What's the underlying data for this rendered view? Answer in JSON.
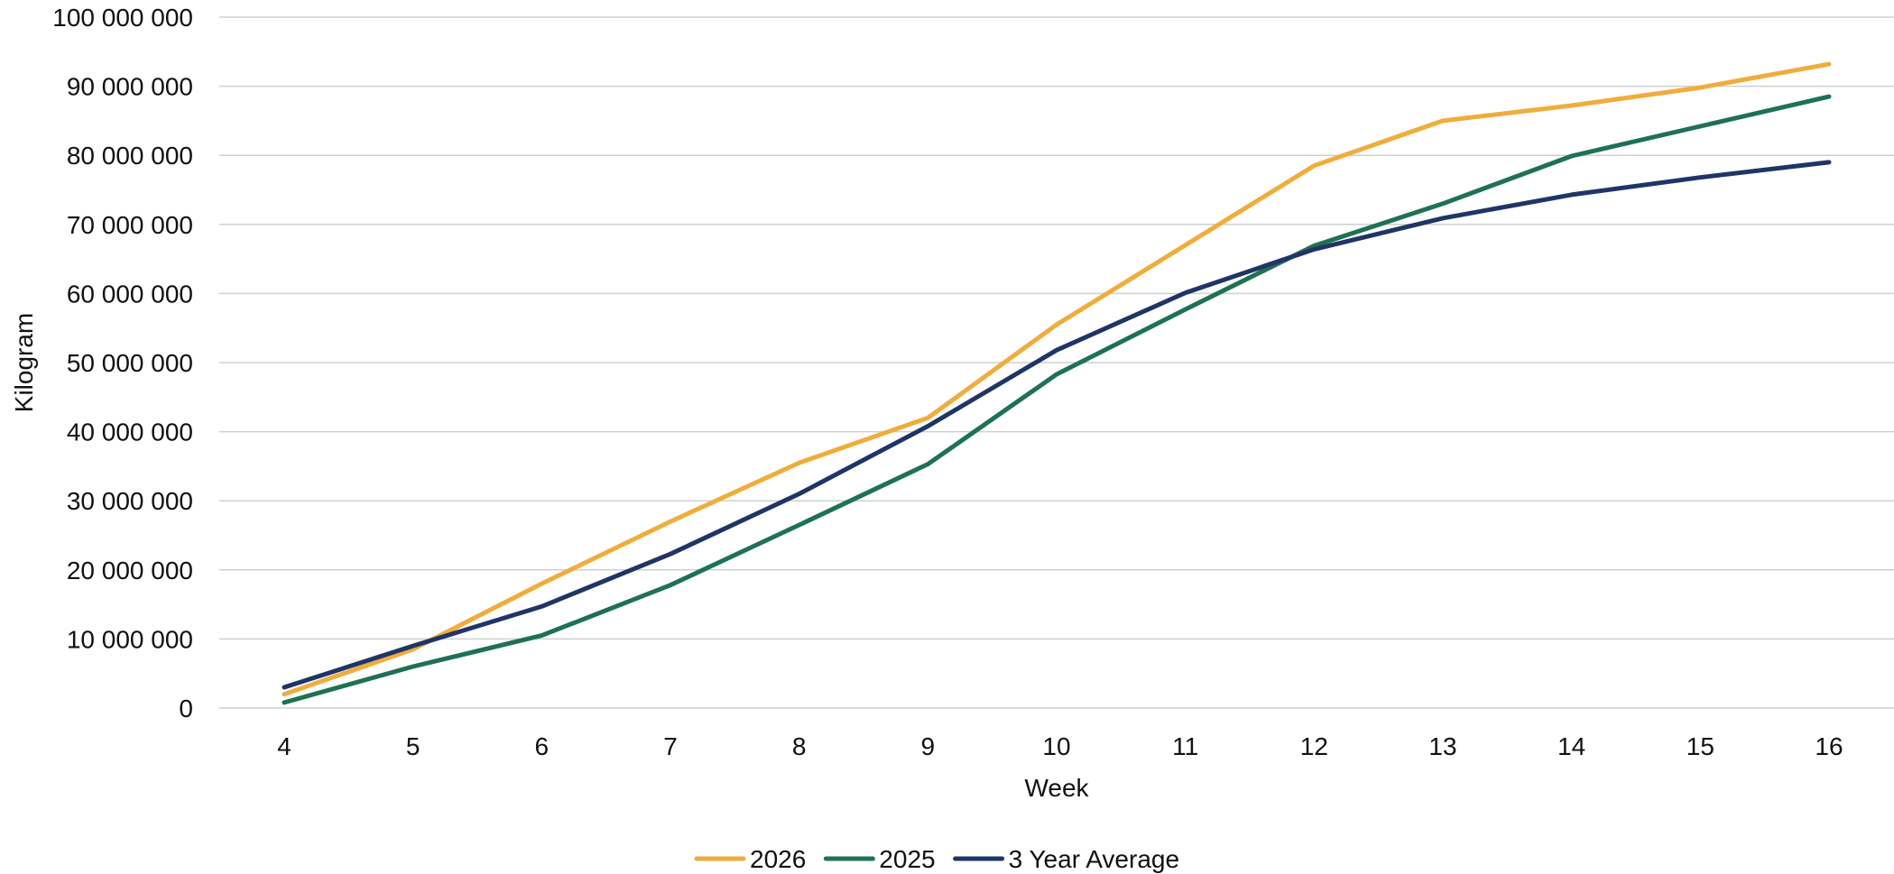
{
  "chart_data": {
    "type": "line",
    "title": "",
    "xlabel": "Week",
    "ylabel": "Kilogram",
    "x": [
      4,
      5,
      6,
      7,
      8,
      9,
      10,
      11,
      12,
      13,
      14,
      15,
      16
    ],
    "x_tick_labels": [
      "4",
      "5",
      "6",
      "7",
      "8",
      "9",
      "10",
      "11",
      "12",
      "13",
      "14",
      "15",
      "16"
    ],
    "ylim": [
      0,
      100000000
    ],
    "y_ticks": [
      0,
      10000000,
      20000000,
      30000000,
      40000000,
      50000000,
      60000000,
      70000000,
      80000000,
      90000000,
      100000000
    ],
    "y_tick_labels": [
      "0",
      "10 000 000",
      "20 000 000",
      "30 000 000",
      "40 000 000",
      "50 000 000",
      "60 000 000",
      "70 000 000",
      "80 000 000",
      "90 000 000",
      "100 000 000"
    ],
    "grid": true,
    "legend_position": "bottom",
    "series": [
      {
        "name": "2026",
        "color": "#F0AD3C",
        "values": [
          2000000,
          8500000,
          18000000,
          27000000,
          35500000,
          42000000,
          55500000,
          67000000,
          78500000,
          85000000,
          87200000,
          89800000,
          93200000
        ]
      },
      {
        "name": "2025",
        "color": "#1E7251",
        "values": [
          800000,
          6000000,
          10500000,
          17800000,
          26500000,
          35300000,
          48300000,
          57700000,
          66900000,
          73000000,
          79900000,
          84200000,
          88500000
        ]
      },
      {
        "name": "3 Year Average",
        "color": "#1F3566",
        "values": [
          3000000,
          9000000,
          14700000,
          22300000,
          31000000,
          40800000,
          51800000,
          60100000,
          66400000,
          70900000,
          74300000,
          76800000,
          79000000
        ]
      }
    ]
  }
}
